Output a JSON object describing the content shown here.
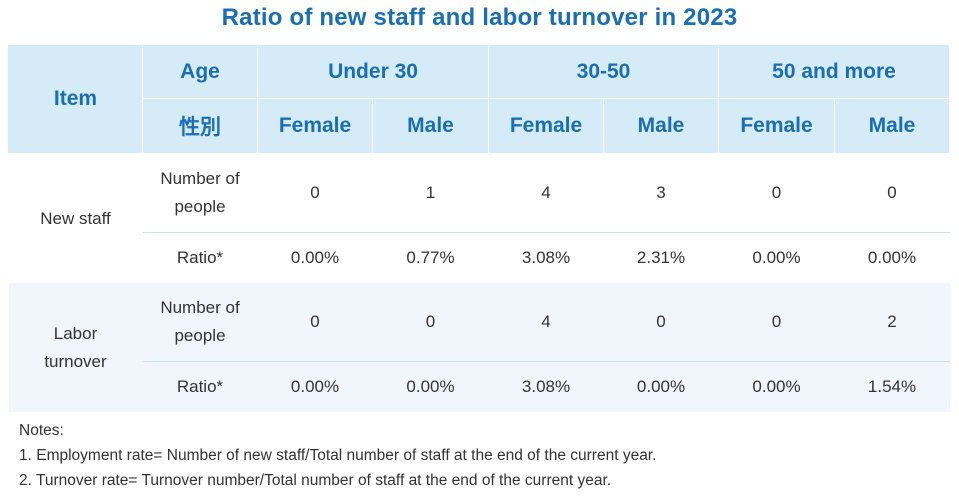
{
  "title": "Ratio of new staff and labor turnover in 2023",
  "table": {
    "header": {
      "item": "Item",
      "age": "Age",
      "gender": "性別",
      "age_groups": [
        "Under 30",
        "30-50",
        "50 and more"
      ],
      "genders": [
        "Female",
        "Male",
        "Female",
        "Male",
        "Female",
        "Male"
      ]
    },
    "groups": [
      {
        "label_line1": "New staff",
        "label_line2": "",
        "rows": [
          {
            "label_line1": "Number of",
            "label_line2": "people",
            "values": [
              "0",
              "1",
              "4",
              "3",
              "0",
              "0"
            ]
          },
          {
            "label_line1": "Ratio*",
            "label_line2": "",
            "values": [
              "0.00%",
              "0.77%",
              "3.08%",
              "2.31%",
              "0.00%",
              "0.00%"
            ]
          }
        ]
      },
      {
        "label_line1": "Labor",
        "label_line2": "turnover",
        "rows": [
          {
            "label_line1": "Number of",
            "label_line2": "people",
            "values": [
              "0",
              "0",
              "4",
              "0",
              "0",
              "2"
            ]
          },
          {
            "label_line1": "Ratio*",
            "label_line2": "",
            "values": [
              "0.00%",
              "0.00%",
              "3.08%",
              "0.00%",
              "0.00%",
              "1.54%"
            ]
          }
        ]
      }
    ]
  },
  "notes": {
    "heading": "Notes:",
    "items": [
      "1. Employment rate= Number of new staff/Total number of staff at the end of the current year.",
      "2. Turnover rate= Turnover number/Total number of staff at the end of the current year."
    ]
  },
  "colors": {
    "accent": "#1a6fb4",
    "header_bg": "#d5ebf8",
    "alt_row_bg": "#f0f6fc"
  }
}
